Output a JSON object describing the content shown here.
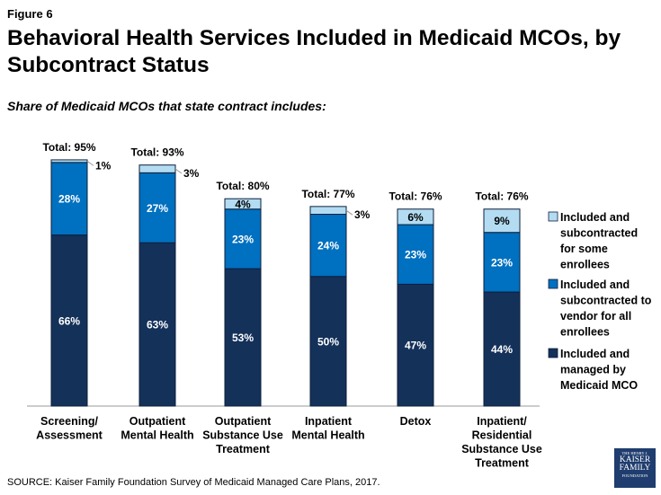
{
  "figure_label": "Figure 6",
  "source": "SOURCE: Kaiser Family Foundation Survey of Medicaid Managed Care Plans, 2017.",
  "logo": {
    "line1": "THE HENRY J.",
    "line2": "KAISER",
    "line3": "FAMILY",
    "line4": "FOUNDATION"
  },
  "chart_data": {
    "type": "bar",
    "stacked": true,
    "title": "Behavioral Health Services Included in Medicaid MCOs, by Subcontract Status",
    "subtitle": "Share of Medicaid MCOs that state contract includes:",
    "categories": [
      [
        "Screening/",
        "Assessment"
      ],
      [
        "Outpatient",
        "Mental Health"
      ],
      [
        "Outpatient",
        "Substance Use",
        "Treatment"
      ],
      [
        "Inpatient",
        "Mental Health"
      ],
      [
        "Detox"
      ],
      [
        "Inpatient/",
        "Residential",
        "Substance Use",
        "Treatment"
      ]
    ],
    "totals": [
      "Total: 95%",
      "Total: 93%",
      "Total: 80%",
      "Total: 77%",
      "Total: 76%",
      "Total: 76%"
    ],
    "series": [
      {
        "name": "Included and managed by Medicaid MCO",
        "legend_lines": [
          "Included and",
          "managed by",
          "Medicaid MCO"
        ],
        "color": "#14315a",
        "values": [
          66,
          63,
          53,
          50,
          47,
          44
        ]
      },
      {
        "name": "Included and subcontracted to vendor for all enrollees",
        "legend_lines": [
          "Included and",
          "subcontracted to",
          "vendor for all",
          "enrollees"
        ],
        "color": "#0070c0",
        "values": [
          28,
          27,
          23,
          24,
          23,
          23
        ]
      },
      {
        "name": "Included and subcontracted for some enrollees",
        "legend_lines": [
          "Included and",
          "subcontracted",
          "for some",
          "enrollees"
        ],
        "color": "#b3dcf2",
        "values": [
          1,
          3,
          4,
          3,
          6,
          9
        ]
      }
    ],
    "ylim": [
      0,
      100
    ],
    "grid": false,
    "legend_position": "right"
  }
}
